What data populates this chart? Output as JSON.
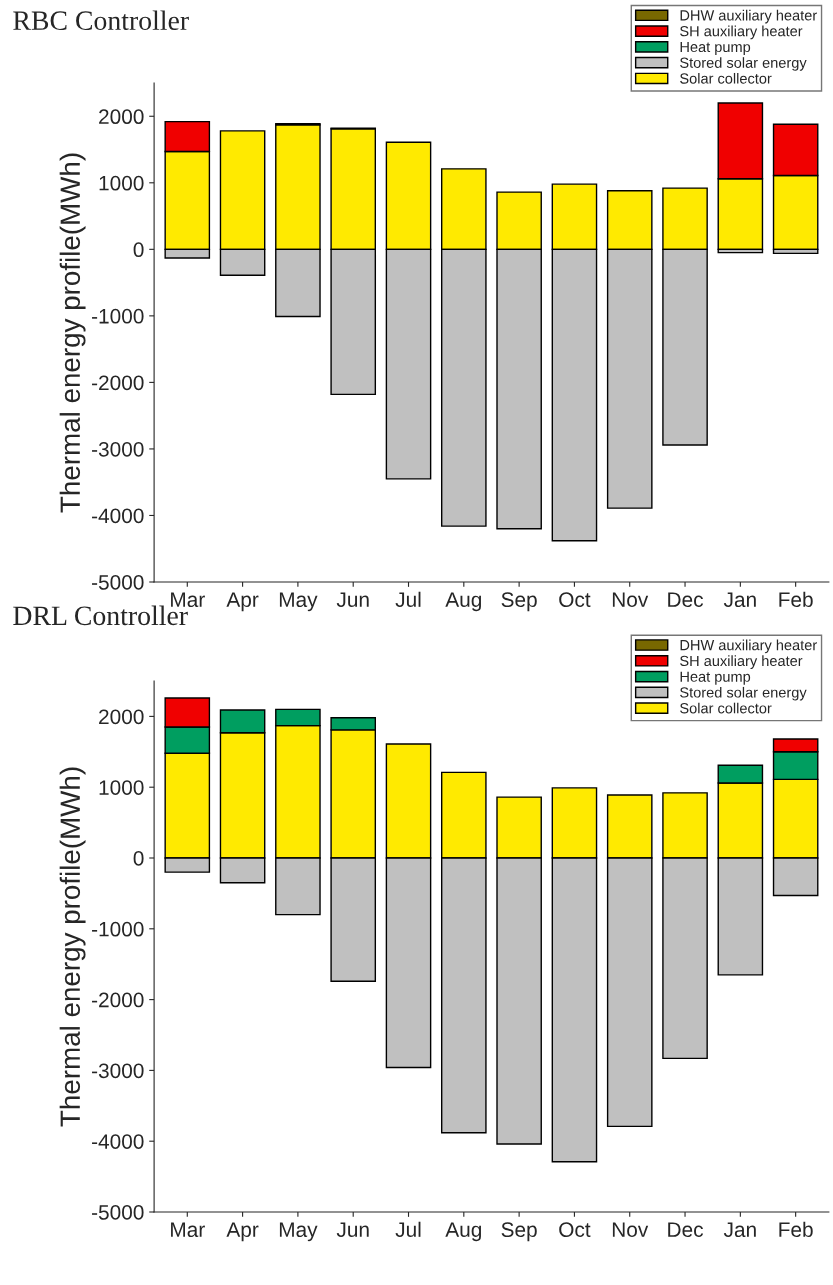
{
  "chart_data": [
    {
      "type": "bar",
      "title": "RBC Controller",
      "ylabel": "Thermal energy profile(MWh)",
      "stacked": true,
      "legend": "top right",
      "grid": false,
      "categories": [
        "Mar",
        "Apr",
        "May",
        "Jun",
        "Jul",
        "Aug",
        "Sep",
        "Oct",
        "Nov",
        "Dec",
        "Jan",
        "Feb"
      ],
      "ylim": [
        -5000,
        2500
      ],
      "yticks": [
        -5000,
        -4000,
        -3000,
        -2000,
        -1000,
        0,
        1000,
        2000
      ],
      "series": [
        {
          "name": "Solar collector",
          "color": "#ffea00",
          "values": [
            1470,
            1780,
            1870,
            1810,
            1610,
            1210,
            860,
            980,
            880,
            920,
            1060,
            1110
          ]
        },
        {
          "name": "Stored solar energy",
          "color": "#c0c0c0",
          "values": [
            -130,
            -390,
            -1010,
            -2180,
            -3450,
            -4160,
            -4200,
            -4380,
            -3890,
            -2940,
            -50,
            -60
          ]
        },
        {
          "name": "Heat pump",
          "color": "#009e60",
          "values": [
            null,
            null,
            null,
            null,
            null,
            null,
            null,
            null,
            null,
            null,
            null,
            null
          ]
        },
        {
          "name": "SH auxiliary heater",
          "color": "#f00000",
          "values": [
            450,
            null,
            null,
            null,
            null,
            null,
            null,
            null,
            null,
            null,
            1140,
            770
          ]
        },
        {
          "name": "DHW auxiliary heater",
          "color": "#786800",
          "values": [
            null,
            null,
            20,
            10,
            null,
            null,
            null,
            null,
            null,
            null,
            null,
            null
          ]
        }
      ]
    },
    {
      "type": "bar",
      "title": "DRL Controller",
      "ylabel": "Thermal energy profile(MWh)",
      "stacked": true,
      "legend": "top right",
      "grid": false,
      "categories": [
        "Mar",
        "Apr",
        "May",
        "Jun",
        "Jul",
        "Aug",
        "Sep",
        "Oct",
        "Nov",
        "Dec",
        "Jan",
        "Feb"
      ],
      "ylim": [
        -5000,
        2500
      ],
      "yticks": [
        -5000,
        -4000,
        -3000,
        -2000,
        -1000,
        0,
        1000,
        2000
      ],
      "series": [
        {
          "name": "Solar collector",
          "color": "#ffea00",
          "values": [
            1480,
            1770,
            1870,
            1810,
            1610,
            1210,
            860,
            990,
            890,
            920,
            1060,
            1110
          ]
        },
        {
          "name": "Stored solar energy",
          "color": "#c0c0c0",
          "values": [
            -200,
            -350,
            -800,
            -1740,
            -2960,
            -3880,
            -4040,
            -4290,
            -3790,
            -2830,
            -1650,
            -530
          ]
        },
        {
          "name": "Heat pump",
          "color": "#009e60",
          "values": [
            370,
            320,
            230,
            170,
            null,
            null,
            null,
            null,
            null,
            null,
            250,
            390
          ]
        },
        {
          "name": "SH auxiliary heater",
          "color": "#f00000",
          "values": [
            410,
            null,
            null,
            null,
            null,
            null,
            null,
            null,
            null,
            null,
            null,
            180
          ]
        },
        {
          "name": "DHW auxiliary heater",
          "color": "#786800",
          "values": [
            null,
            null,
            null,
            null,
            null,
            null,
            null,
            null,
            null,
            null,
            null,
            null
          ]
        }
      ]
    }
  ]
}
